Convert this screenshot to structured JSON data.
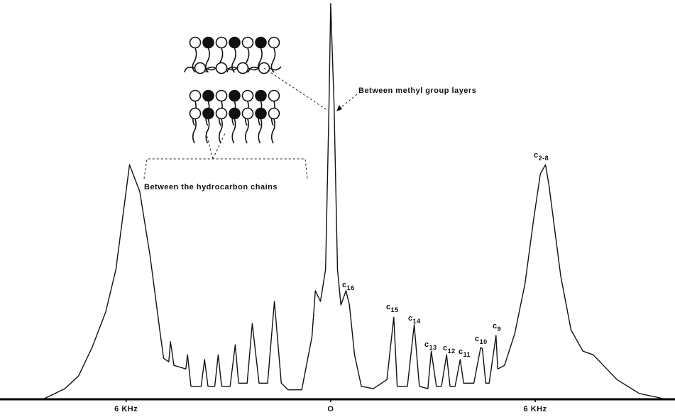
{
  "chart_data": {
    "type": "line",
    "x": [
      -8.4,
      -7.8,
      -7.4,
      -7.0,
      -6.6,
      -6.3,
      -5.9,
      -5.6,
      -5.3,
      -5.0,
      -4.9,
      -4.75,
      -4.7,
      -4.6,
      -4.25,
      -4.2,
      -4.1,
      -3.8,
      -3.7,
      -3.6,
      -3.4,
      -3.3,
      -3.2,
      -2.95,
      -2.8,
      -2.7,
      -2.45,
      -2.3,
      -2.1,
      -1.85,
      -1.65,
      -1.45,
      -1.25,
      -0.85,
      -0.55,
      -0.45,
      -0.3,
      -0.15,
      -0.05,
      0,
      0.1,
      0.2,
      0.3,
      0.45,
      0.55,
      0.7,
      0.9,
      1.25,
      1.65,
      1.85,
      1.95,
      2.25,
      2.45,
      2.6,
      2.85,
      2.95,
      3.1,
      3.25,
      3.4,
      3.5,
      3.65,
      3.8,
      3.9,
      4.2,
      4.4,
      4.45,
      4.55,
      4.65,
      4.85,
      4.9,
      5.1,
      5.4,
      5.7,
      5.95,
      6.15,
      6.3,
      6.4,
      6.75,
      7.05,
      7.4,
      7.7,
      8.0,
      8.4,
      9.05,
      9.75
    ],
    "values": [
      0,
      2.5,
      5.7,
      12.9,
      21.9,
      32.7,
      59.2,
      52.4,
      36.3,
      16.5,
      10.2,
      9.3,
      14.4,
      8.4,
      7.5,
      11.1,
      3.1,
      3.1,
      9.9,
      3.1,
      3.1,
      11.1,
      3.1,
      3.1,
      13.6,
      3.9,
      3.9,
      19.0,
      3.9,
      3.9,
      24.6,
      3.9,
      2.2,
      2.2,
      15.6,
      27.3,
      24.6,
      32.7,
      74.0,
      100,
      74.0,
      32.7,
      23.7,
      27.3,
      23.7,
      11.1,
      3.1,
      2.5,
      4.8,
      20.6,
      3.1,
      3.1,
      18.7,
      3.1,
      2.5,
      12.0,
      3.1,
      3.1,
      11.1,
      3.1,
      3.1,
      9.9,
      3.9,
      3.9,
      12.9,
      12.6,
      3.9,
      3.9,
      16.0,
      7.5,
      8.4,
      16.5,
      29.1,
      45.2,
      56.9,
      59.2,
      54.2,
      30.9,
      17.4,
      12.0,
      11.1,
      8.4,
      4.8,
      1.3,
      0
    ],
    "color": "#111111",
    "xlim": [
      -9.7,
      10.1
    ],
    "ylim": [
      0,
      100
    ],
    "xticks": [
      {
        "value": -6,
        "label": "6 KHz"
      },
      {
        "value": 0,
        "label": "O"
      },
      {
        "value": 6,
        "label": "6 KHz"
      }
    ],
    "annotations": [
      "Between methyl group layers",
      "Between the hydrocarbon chains"
    ],
    "peak_labels": [
      {
        "base": "c",
        "sub": "16"
      },
      {
        "base": "c",
        "sub": "15"
      },
      {
        "base": "c",
        "sub": "14"
      },
      {
        "base": "c",
        "sub": "13"
      },
      {
        "base": "c",
        "sub": "12"
      },
      {
        "base": "c",
        "sub": "11"
      },
      {
        "base": "c",
        "sub": "10"
      },
      {
        "base": "c",
        "sub": "9"
      },
      {
        "base": "c",
        "sub": "2-8"
      }
    ]
  }
}
